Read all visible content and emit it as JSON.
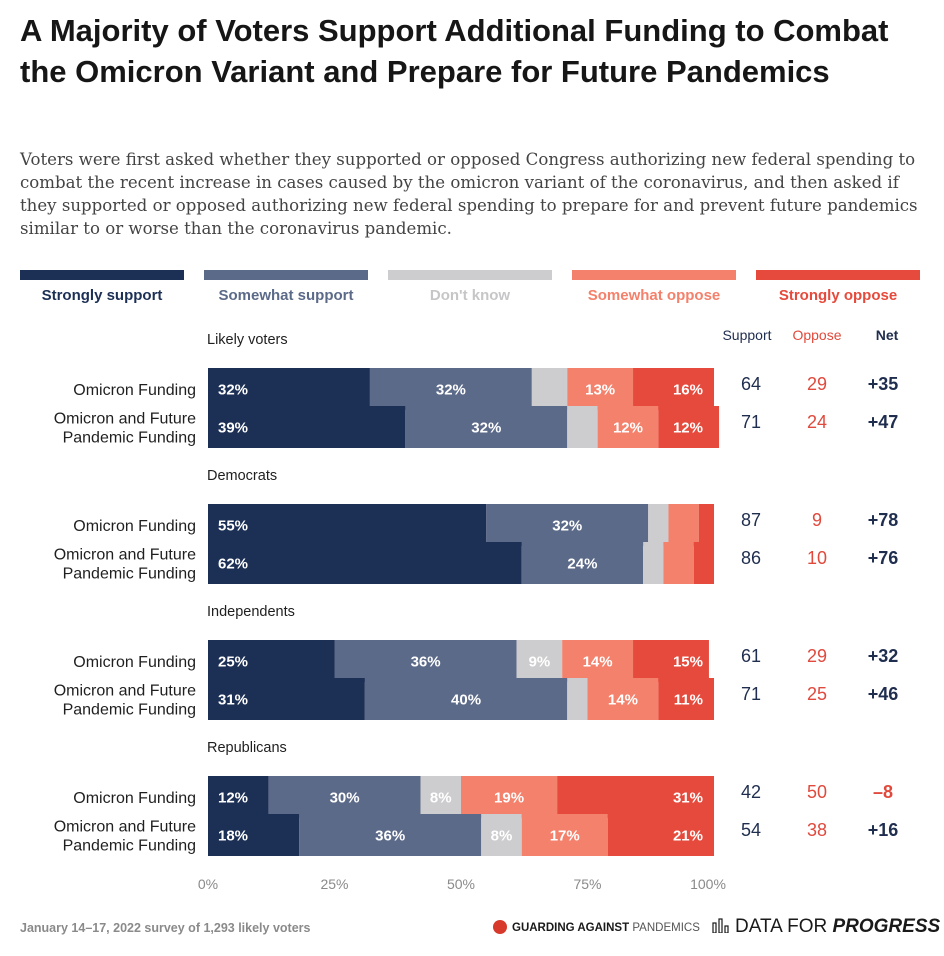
{
  "title": "A Majority of Voters Support Additional Funding to Combat the Omicron Variant and Prepare for Future Pandemics",
  "subtitle": "Voters were first asked whether they supported or opposed Congress authorizing new federal spending to combat the recent increase in cases caused by the omicron variant of the coronavirus, and then asked if they supported or opposed authorizing new federal spending to prepare for and prevent future pandemics similar to or worse than the coronavirus pandemic.",
  "footer_note": "January 14–17, 2022 survey of 1,293 likely voters",
  "logos": {
    "gap_main": "GUARDING AGAINST",
    "gap_sub": "PANDEMICS",
    "dfp_main": "DATA FOR",
    "dfp_bold": "PROGRESS"
  },
  "colors": {
    "strongly_support": "#1c2f55",
    "somewhat_support": "#5c6a89",
    "dont_know": "#cdcdcf",
    "somewhat_oppose": "#f4816b",
    "strongly_oppose": "#e54a3c",
    "support_text": "#1f2d4e",
    "oppose_text": "#e0493c"
  },
  "chart_data": {
    "type": "bar",
    "orientation": "horizontal",
    "stacked": true,
    "xlim": [
      0,
      100
    ],
    "x_ticks": [
      "0%",
      "25%",
      "50%",
      "75%",
      "100%"
    ],
    "legend_position": "top",
    "summary_headers": [
      "Support",
      "Oppose",
      "Net"
    ],
    "series": [
      {
        "name": "Strongly support",
        "color": "#1c2f55"
      },
      {
        "name": "Somewhat support",
        "color": "#5c6a89"
      },
      {
        "name": "Don't know",
        "color": "#cdcdcf"
      },
      {
        "name": "Somewhat oppose",
        "color": "#f4816b"
      },
      {
        "name": "Strongly oppose",
        "color": "#e54a3c"
      }
    ],
    "groups": [
      {
        "name": "Likely voters",
        "rows": [
          {
            "label": [
              "Omicron Funding"
            ],
            "values": [
              32,
              32,
              7,
              13,
              16
            ],
            "support": "64",
            "oppose": "29",
            "net": "+35"
          },
          {
            "label": [
              "Omicron and Future",
              "Pandemic Funding"
            ],
            "values": [
              39,
              32,
              6,
              12,
              12
            ],
            "support": "71",
            "oppose": "24",
            "net": "+47"
          }
        ]
      },
      {
        "name": "Democrats",
        "rows": [
          {
            "label": [
              "Omicron Funding"
            ],
            "values": [
              55,
              32,
              4,
              6,
              3
            ],
            "support": "87",
            "oppose": "9",
            "net": "+78"
          },
          {
            "label": [
              "Omicron and Future",
              "Pandemic Funding"
            ],
            "values": [
              62,
              24,
              4,
              6,
              4
            ],
            "support": "86",
            "oppose": "10",
            "net": "+76"
          }
        ]
      },
      {
        "name": "Independents",
        "rows": [
          {
            "label": [
              "Omicron Funding"
            ],
            "values": [
              25,
              36,
              9,
              14,
              15
            ],
            "support": "61",
            "oppose": "29",
            "net": "+32"
          },
          {
            "label": [
              "Omicron and Future",
              "Pandemic Funding"
            ],
            "values": [
              31,
              40,
              4,
              14,
              11
            ],
            "support": "71",
            "oppose": "25",
            "net": "+46"
          }
        ]
      },
      {
        "name": "Republicans",
        "rows": [
          {
            "label": [
              "Omicron Funding"
            ],
            "values": [
              12,
              30,
              8,
              19,
              31
            ],
            "support": "42",
            "oppose": "50",
            "net": "–8"
          },
          {
            "label": [
              "Omicron and Future",
              "Pandemic Funding"
            ],
            "values": [
              18,
              36,
              8,
              17,
              21
            ],
            "support": "54",
            "oppose": "38",
            "net": "+16"
          }
        ]
      }
    ]
  }
}
